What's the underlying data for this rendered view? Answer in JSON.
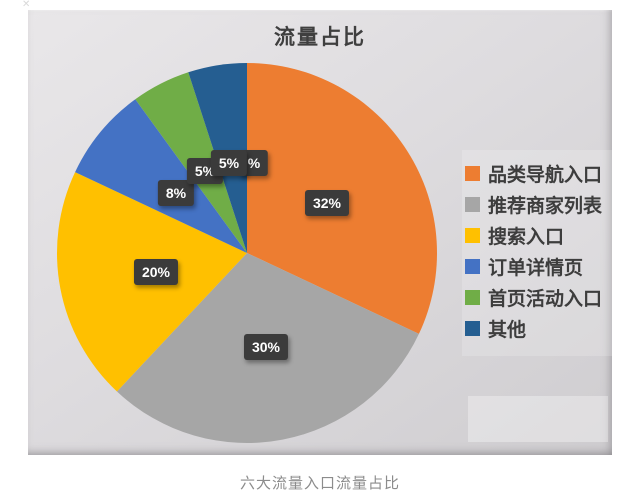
{
  "page": {
    "caption": "六大流量入口流量占比"
  },
  "chart_data": {
    "type": "pie",
    "title": "流量占比",
    "categories": [
      "品类导航入口",
      "推荐商家列表",
      "搜索入口",
      "订单详情页",
      "首页活动入口",
      "其他"
    ],
    "values": [
      32,
      30,
      20,
      8,
      5,
      5
    ],
    "labels": [
      "32%",
      "30%",
      "20%",
      "8%",
      "5%",
      "5%"
    ],
    "colors": [
      "#ED7D31",
      "#A6A6A6",
      "#FFC000",
      "#4472C4",
      "#70AD47",
      "#255E91"
    ],
    "occluded_label_text": "%",
    "start_angle_deg": 0,
    "direction": "clockwise",
    "legend_position": "right",
    "label_style": {
      "background": "#3B3B3B",
      "text_color": "#FFFFFF"
    }
  }
}
